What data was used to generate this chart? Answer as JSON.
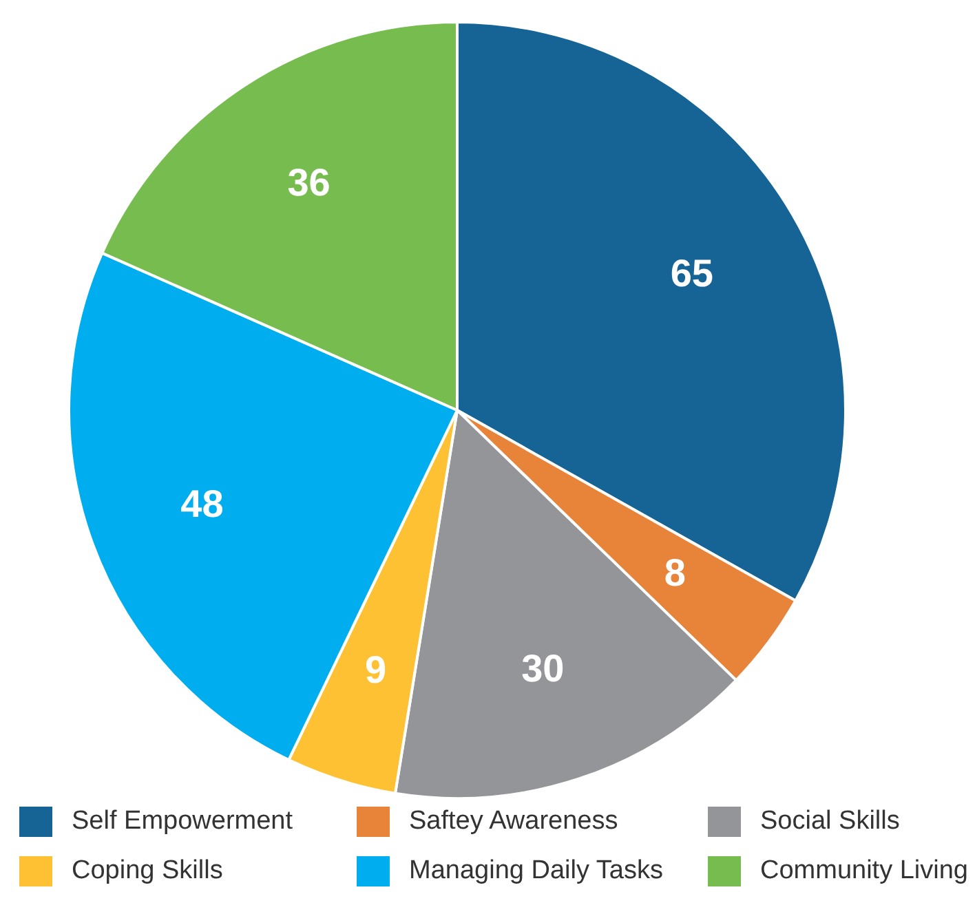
{
  "chart_data": {
    "type": "pie",
    "categories": [
      "Self Empowerment",
      "Saftey Awareness",
      "Social Skills",
      "Coping Skills",
      "Managing Daily Tasks",
      "Community Living"
    ],
    "values": [
      65,
      8,
      30,
      9,
      48,
      36
    ],
    "colors": [
      "#166396",
      "#e8843a",
      "#939598",
      "#fdc133",
      "#00aeef",
      "#77bc4f"
    ],
    "data_labels": true,
    "legend": "bottom"
  }
}
